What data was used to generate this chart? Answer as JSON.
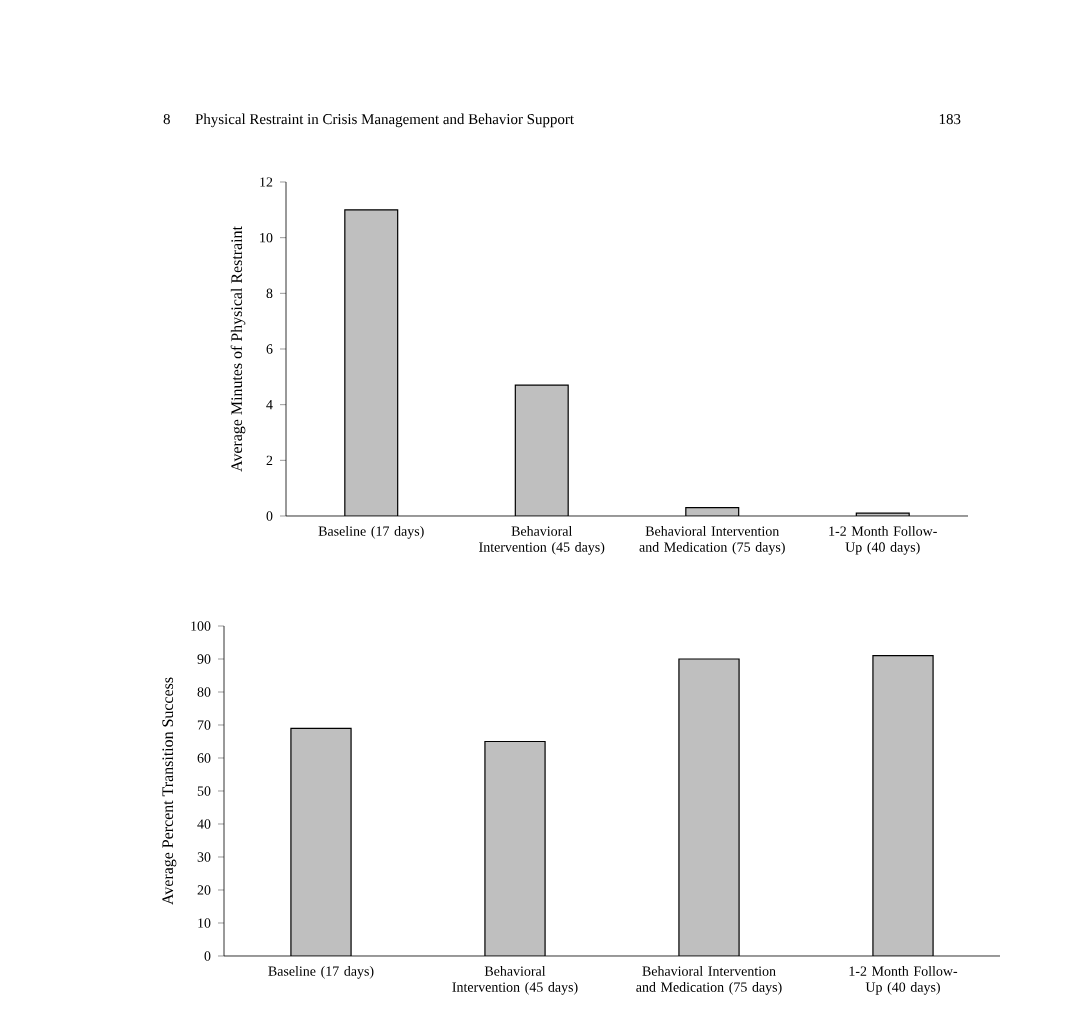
{
  "chart_data": [
    {
      "type": "bar",
      "title": "Physical Restraint in Crisis Management and Behavior Support",
      "annotations": [
        "8",
        "183"
      ],
      "categories": [
        "Baseline (17 days)",
        "Behavioral Intervention (45 days)",
        "Behavioral Intervention and Medication (75 days)",
        "1-2 Month Follow-Up (40 days)"
      ],
      "values": [
        11,
        4.7,
        0.3,
        0.1
      ],
      "color": "#bfbfbf",
      "ylabel": "Average Minutes of Physical Restraint",
      "ylim": [
        0,
        12
      ],
      "yticks": [
        0,
        2,
        4,
        6,
        8,
        10,
        12
      ]
    },
    {
      "type": "bar",
      "categories": [
        "Baseline (17 days)",
        "Behavioral Intervention (45 days)",
        "Behavioral Intervention and Medication (75 days)",
        "1-2 Month Follow-Up (40 days)"
      ],
      "values": [
        69,
        65,
        90,
        91
      ],
      "color": "#bfbfbf",
      "ylabel": "Average Percent Transition Success",
      "ylim": [
        0,
        100
      ],
      "yticks": [
        0,
        10,
        20,
        30,
        40,
        50,
        60,
        70,
        80,
        90,
        100
      ]
    }
  ]
}
